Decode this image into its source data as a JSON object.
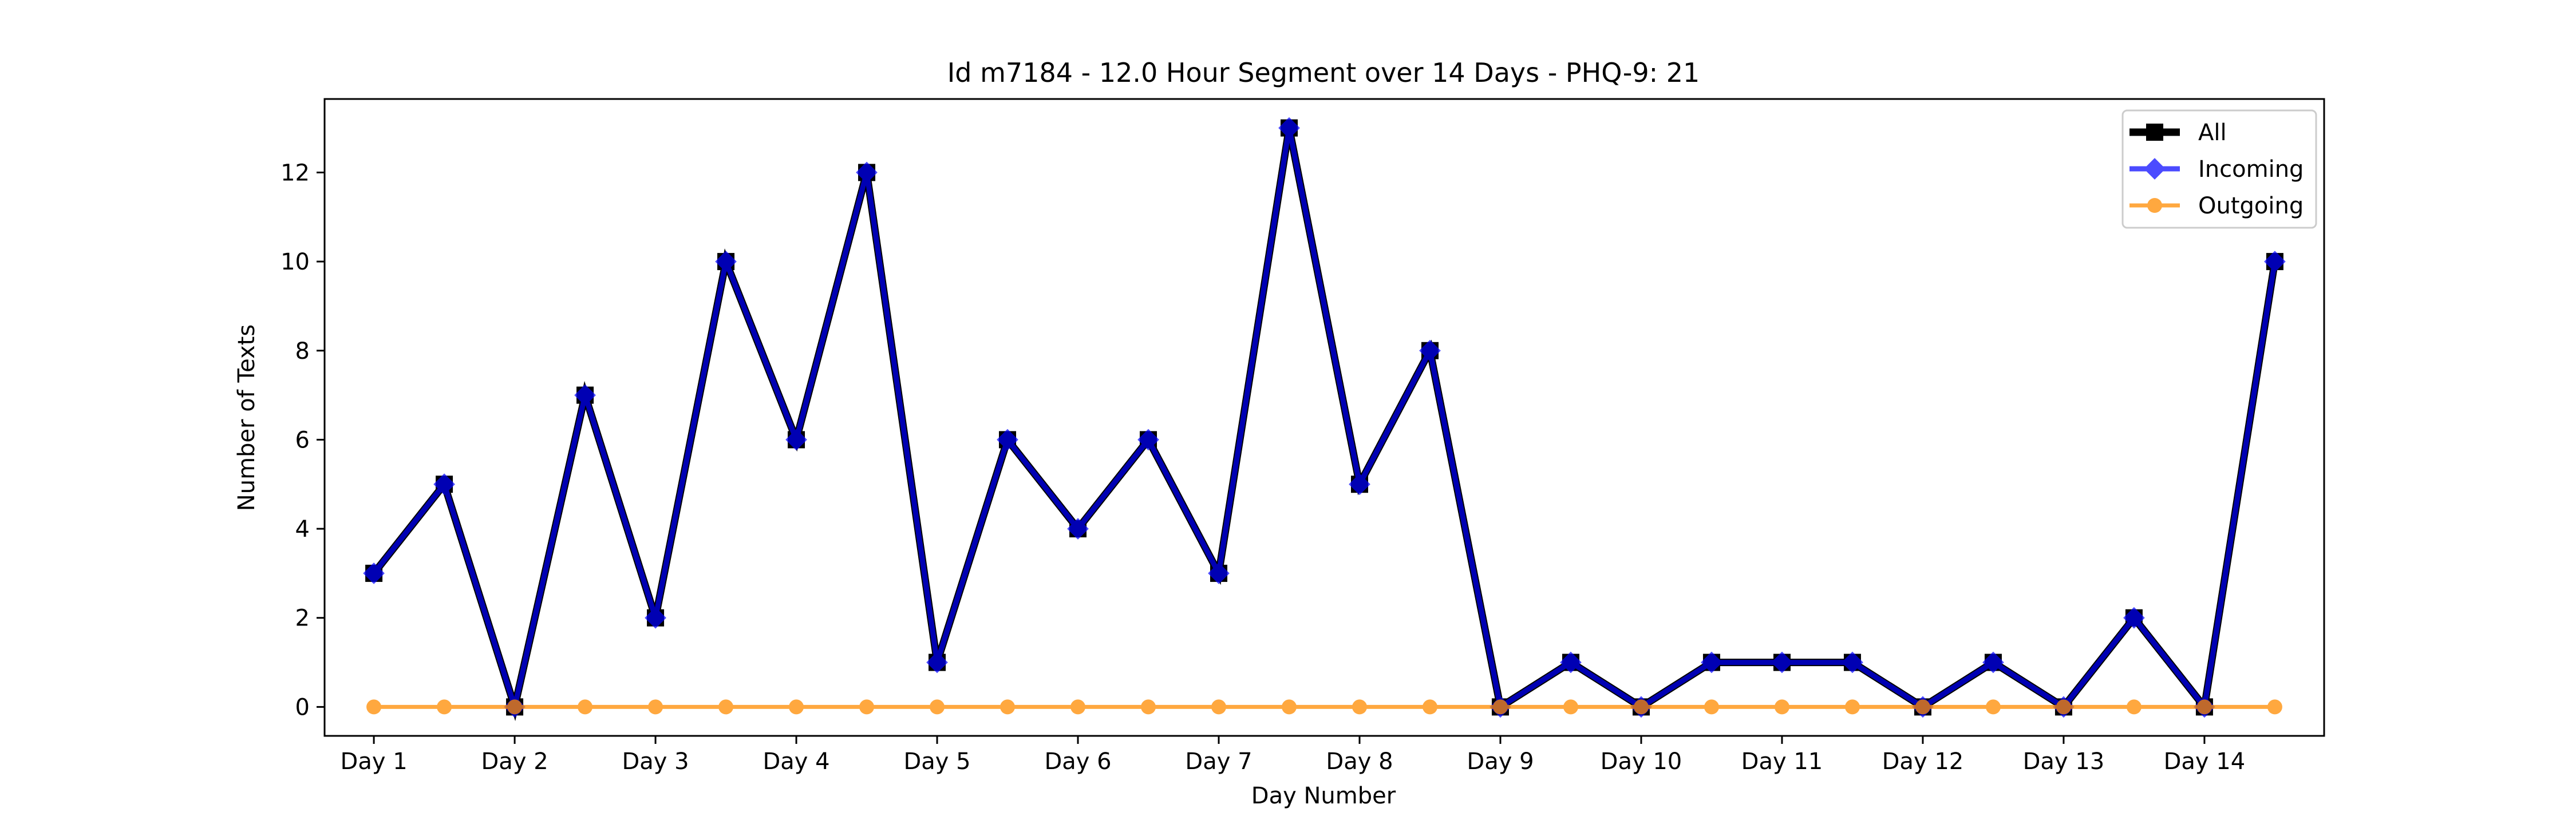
{
  "chart_data": {
    "type": "line",
    "title": "Id m7184 - 12.0 Hour Segment over 14 Days - PHQ-9: 21",
    "xlabel": "Day Number",
    "ylabel": "Number of Texts",
    "x": [
      1,
      1.5,
      2,
      2.5,
      3,
      3.5,
      4,
      4.5,
      5,
      5.5,
      6,
      6.5,
      7,
      7.5,
      8,
      8.5,
      9,
      9.5,
      10,
      10.5,
      11,
      11.5,
      12,
      12.5,
      13,
      13.5,
      14,
      14.5
    ],
    "xticks": [
      1,
      2,
      3,
      4,
      5,
      6,
      7,
      8,
      9,
      10,
      11,
      12,
      13,
      14
    ],
    "xtick_labels": [
      "Day 1",
      "Day 2",
      "Day 3",
      "Day 4",
      "Day 5",
      "Day 6",
      "Day 7",
      "Day 8",
      "Day 9",
      "Day 10",
      "Day 11",
      "Day 12",
      "Day 13",
      "Day 14"
    ],
    "yticks": [
      0,
      2,
      4,
      6,
      8,
      10,
      12
    ],
    "ylim": [
      -0.65,
      13.65
    ],
    "grid": false,
    "legend_position": "top-right",
    "series": [
      {
        "name": "All",
        "color": "#000000",
        "marker": "square",
        "values": [
          3,
          5,
          0,
          7,
          2,
          10,
          6,
          12,
          1,
          6,
          4,
          6,
          3,
          13,
          5,
          8,
          0,
          1,
          0,
          1,
          1,
          1,
          0,
          1,
          0,
          2,
          0,
          10
        ]
      },
      {
        "name": "Incoming",
        "color": "#0000ff",
        "marker": "diamond",
        "values": [
          3,
          5,
          0,
          7,
          2,
          10,
          6,
          12,
          1,
          6,
          4,
          6,
          3,
          13,
          5,
          8,
          0,
          1,
          0,
          1,
          1,
          1,
          0,
          1,
          0,
          2,
          0,
          10
        ]
      },
      {
        "name": "Outgoing",
        "color": "#ff8c00",
        "marker": "circle",
        "values": [
          0,
          0,
          0,
          0,
          0,
          0,
          0,
          0,
          0,
          0,
          0,
          0,
          0,
          0,
          0,
          0,
          0,
          0,
          0,
          0,
          0,
          0,
          0,
          0,
          0,
          0,
          0,
          0
        ]
      }
    ]
  }
}
